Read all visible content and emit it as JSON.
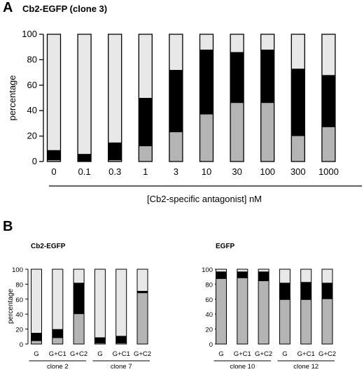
{
  "panelA": {
    "letter": "A",
    "title": "Cb2-EGFP (clone 3)",
    "xlabel": "[Cb2-specific antagonist] nM"
  },
  "panelB": {
    "letter": "B",
    "left_title": "Cb2-EGFP",
    "right_title": "EGFP"
  },
  "colors": {
    "light": "#e8e8e8",
    "black": "#000000",
    "gray": "#b4b4b4",
    "outline": "#000000"
  },
  "chart_data": [
    {
      "type": "bar",
      "stacked": true,
      "title": "Cb2-EGFP (clone 3)",
      "xlabel": "[Cb2-specific antagonist] nM",
      "ylabel": "percentage",
      "ylim": [
        0,
        100
      ],
      "yticks": [
        0,
        20,
        40,
        60,
        80,
        100
      ],
      "categories": [
        "0",
        "0.1",
        "0.3",
        "1",
        "3",
        "10",
        "30",
        "100",
        "300",
        "1000"
      ],
      "series": [
        {
          "color": "gray",
          "values": [
            1,
            0,
            1,
            12,
            23,
            37,
            46,
            46,
            20,
            27
          ]
        },
        {
          "color": "black",
          "values": [
            8,
            6,
            14,
            38,
            49,
            51,
            40,
            42,
            53,
            41
          ]
        },
        {
          "color": "light",
          "values": [
            91,
            94,
            85,
            50,
            28,
            12,
            14,
            12,
            27,
            32
          ]
        }
      ]
    },
    {
      "type": "bar",
      "stacked": true,
      "title": "Cb2-EGFP",
      "ylabel": "percentage",
      "ylim": [
        0,
        100
      ],
      "yticks": [
        0,
        20,
        40,
        60,
        80,
        100
      ],
      "categories": [
        "G",
        "G+C1",
        "G+C2",
        "G",
        "G+C1",
        "G+C2"
      ],
      "groups": [
        {
          "label": "clone 2",
          "count": 3
        },
        {
          "label": "clone 7",
          "count": 3
        }
      ],
      "series": [
        {
          "color": "gray",
          "values": [
            4,
            8,
            40,
            1,
            1,
            68
          ]
        },
        {
          "color": "black",
          "values": [
            11,
            12,
            42,
            8,
            10,
            3
          ]
        },
        {
          "color": "light",
          "values": [
            85,
            80,
            18,
            91,
            89,
            29
          ]
        }
      ]
    },
    {
      "type": "bar",
      "stacked": true,
      "title": "EGFP",
      "ylim": [
        0,
        100
      ],
      "yticks": [
        0,
        20,
        40,
        60,
        80,
        100
      ],
      "categories": [
        "G",
        "G+C1",
        "G+C2",
        "G",
        "G+C1",
        "G+C2"
      ],
      "groups": [
        {
          "label": "clone 10",
          "count": 3
        },
        {
          "label": "clone 12",
          "count": 3
        }
      ],
      "series": [
        {
          "color": "gray",
          "values": [
            87,
            88,
            84,
            59,
            59,
            60
          ]
        },
        {
          "color": "black",
          "values": [
            10,
            9,
            13,
            23,
            24,
            22
          ]
        },
        {
          "color": "light",
          "values": [
            3,
            3,
            3,
            18,
            17,
            18
          ]
        }
      ]
    }
  ]
}
